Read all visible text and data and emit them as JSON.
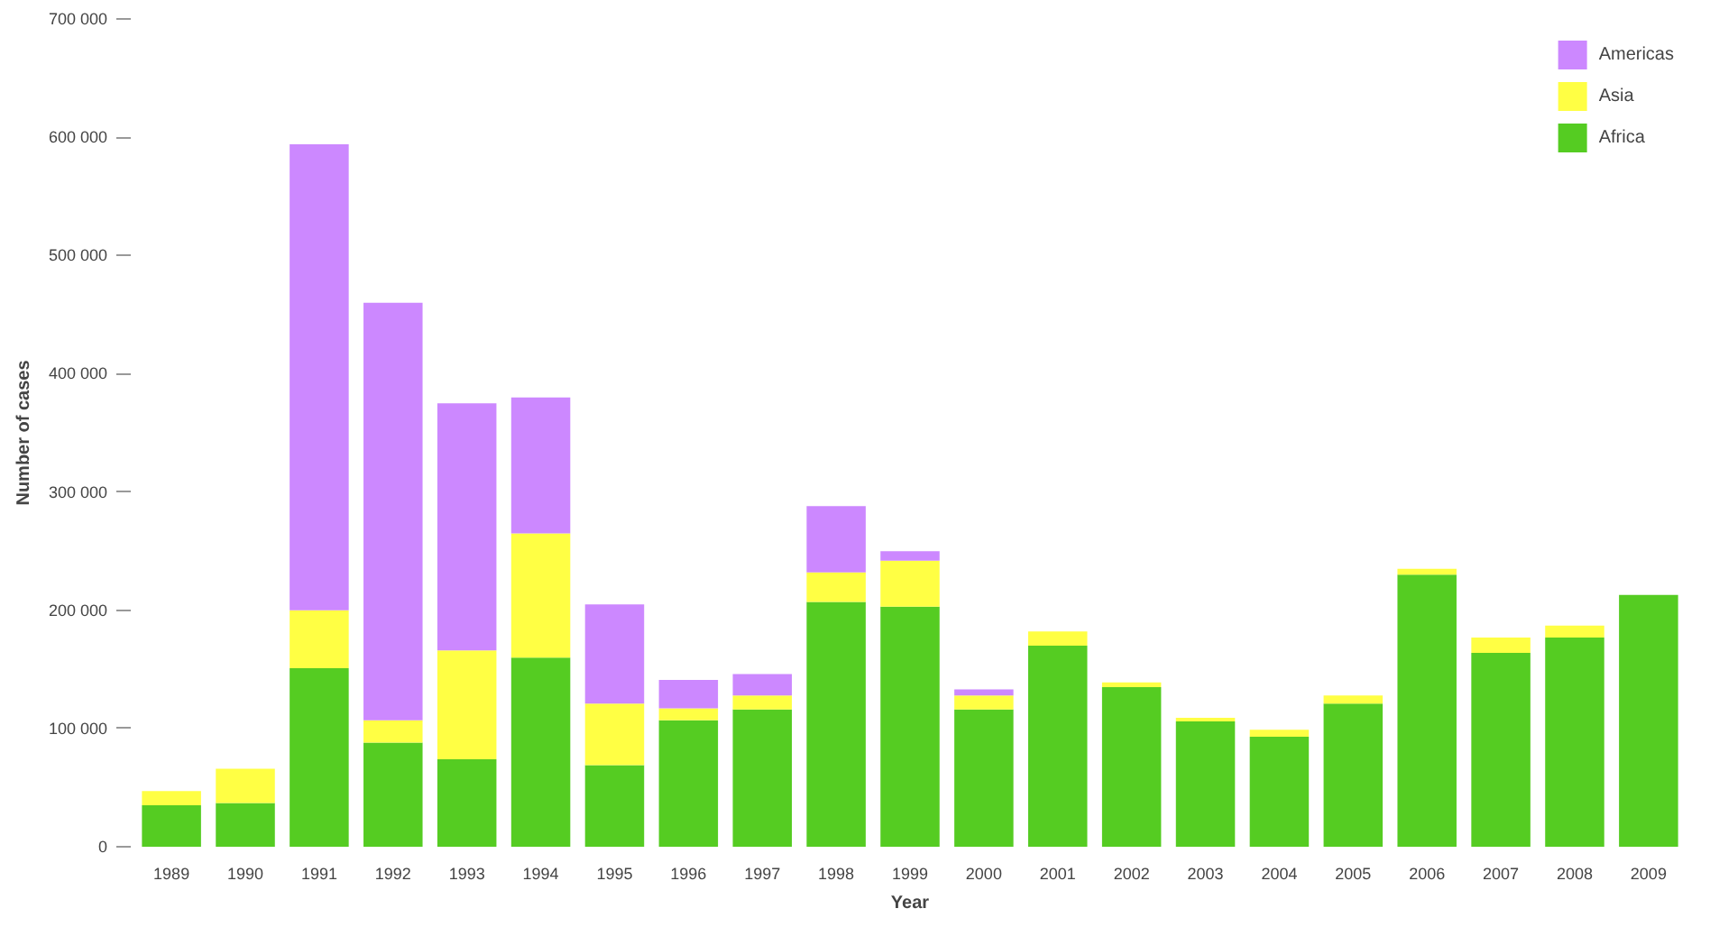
{
  "chart_data": {
    "type": "bar",
    "stacked": true,
    "xlabel": "Year",
    "ylabel": "Number of cases",
    "categories": [
      "1989",
      "1990",
      "1991",
      "1992",
      "1993",
      "1994",
      "1995",
      "1996",
      "1997",
      "1998",
      "1999",
      "2000",
      "2001",
      "2002",
      "2003",
      "2004",
      "2005",
      "2006",
      "2007",
      "2008",
      "2009"
    ],
    "series": [
      {
        "name": "Africa",
        "color": "#55cc22",
        "values": [
          35000,
          37000,
          151000,
          88000,
          74000,
          160000,
          69000,
          107000,
          116000,
          207000,
          203000,
          116000,
          170000,
          135000,
          106000,
          93000,
          121000,
          230000,
          164000,
          177000,
          213000
        ]
      },
      {
        "name": "Asia",
        "color": "#ffff44",
        "values": [
          12000,
          29000,
          49000,
          19000,
          92000,
          105000,
          52000,
          10000,
          12000,
          25000,
          39000,
          12000,
          12000,
          4000,
          3000,
          6000,
          7000,
          5000,
          13000,
          10000,
          0
        ]
      },
      {
        "name": "Americas",
        "color": "#cc88ff",
        "values": [
          0,
          0,
          394000,
          353000,
          209000,
          115000,
          84000,
          24000,
          18000,
          56000,
          8000,
          5000,
          0,
          0,
          0,
          0,
          0,
          0,
          0,
          0,
          0
        ]
      }
    ],
    "ylim": [
      0,
      700000
    ],
    "yticks": [
      {
        "value": 0,
        "label": "0"
      },
      {
        "value": 100000,
        "label": "100 000"
      },
      {
        "value": 200000,
        "label": "200 000"
      },
      {
        "value": 300000,
        "label": "300 000"
      },
      {
        "value": 400000,
        "label": "400 000"
      },
      {
        "value": 500000,
        "label": "500 000"
      },
      {
        "value": 600000,
        "label": "600 000"
      },
      {
        "value": 700000,
        "label": "700 000"
      }
    ],
    "grid": false,
    "legend": "top right"
  }
}
